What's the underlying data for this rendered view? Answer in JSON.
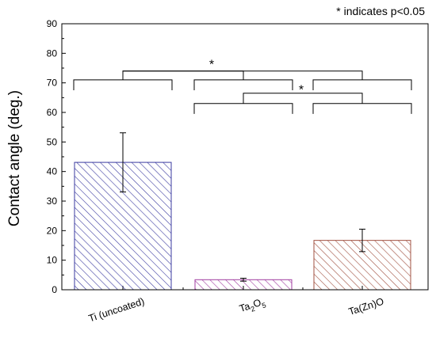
{
  "note": "* indicates p<0.05",
  "chart_data": {
    "type": "bar",
    "title": "",
    "xlabel": "",
    "ylabel": "Contact angle (deg.)",
    "ylim": [
      0,
      90
    ],
    "yticks": [
      0,
      10,
      20,
      30,
      40,
      50,
      60,
      70,
      80,
      90
    ],
    "grid": false,
    "categories": [
      {
        "label": "Ti (uncoated)",
        "base": "Ti (uncoated)",
        "parts": []
      },
      {
        "label": "Ta2O5",
        "base": "",
        "parts": [
          {
            "t": "Ta",
            "sub": false
          },
          {
            "t": "2",
            "sub": true
          },
          {
            "t": "O",
            "sub": false
          },
          {
            "t": "5",
            "sub": true
          }
        ]
      },
      {
        "label": "Ta(Zn)O",
        "base": "Ta(Zn)O",
        "parts": []
      }
    ],
    "values": [
      43.1,
      3.4,
      16.7
    ],
    "errors": [
      10.0,
      0.5,
      3.8
    ],
    "bar_colors": [
      "#3b3ba0",
      "#a03ca0",
      "#a05040"
    ],
    "significance": [
      {
        "a": 0,
        "b": 1,
        "y": 71,
        "arm_down": 3.5,
        "bracket_top": 74,
        "label": "*"
      },
      {
        "a": 0,
        "b": 2,
        "y": 71,
        "arm_down": 3.5,
        "bracket_top": 74,
        "label": "*"
      },
      {
        "a": 1,
        "b": 2,
        "y": 63,
        "arm_down": 3.5,
        "bracket_top": 66.5,
        "label": "*"
      }
    ]
  }
}
